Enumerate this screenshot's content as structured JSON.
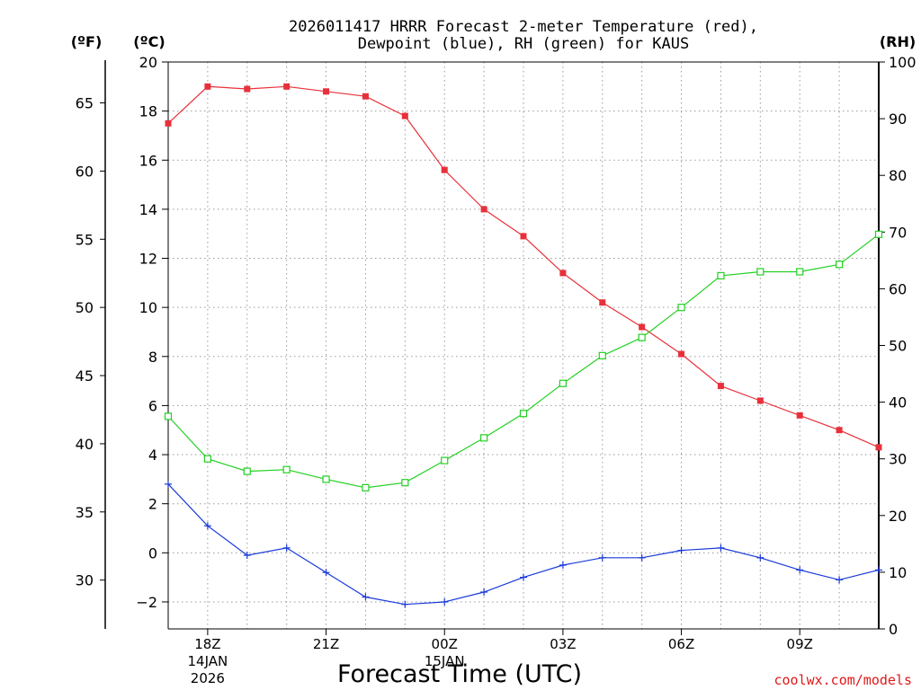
{
  "chart_data": {
    "type": "line",
    "title_line1": "2026011417 HRRR Forecast 2-meter Temperature (red),",
    "title_line2": "Dewpoint (blue), RH (green) for KAUS",
    "units": {
      "f": "(ºF)",
      "c": "(ºC)",
      "rh": "(RH)"
    },
    "xlabel": "Forecast Time (UTC)",
    "credit": "coolwx.com/models",
    "x_hours": [
      17,
      18,
      19,
      20,
      21,
      22,
      23,
      24,
      25,
      26,
      27,
      28,
      29,
      30,
      31,
      32,
      33,
      34,
      35
    ],
    "x_range": [
      17,
      35
    ],
    "x_ticks": [
      {
        "hour": 18,
        "label": "18Z",
        "date": "14JAN",
        "year": "2026"
      },
      {
        "hour": 21,
        "label": "21Z"
      },
      {
        "hour": 24,
        "label": "00Z",
        "date": "15JAN"
      },
      {
        "hour": 27,
        "label": "03Z"
      },
      {
        "hour": 30,
        "label": "06Z"
      },
      {
        "hour": 33,
        "label": "09Z"
      }
    ],
    "c_axis": {
      "range": [
        -3.1,
        20
      ],
      "ticks": [
        -2,
        0,
        2,
        4,
        6,
        8,
        10,
        12,
        14,
        16,
        18,
        20
      ]
    },
    "f_axis": {
      "ticks": [
        30,
        35,
        40,
        45,
        50,
        55,
        60,
        65
      ]
    },
    "rh_axis": {
      "range": [
        0,
        100
      ],
      "ticks": [
        0,
        10,
        20,
        30,
        40,
        50,
        60,
        70,
        80,
        90,
        100
      ]
    },
    "series": [
      {
        "name": "Temperature",
        "axis": "c",
        "color": "#e8303a",
        "marker": "filled-square",
        "values": [
          17.5,
          19.0,
          18.9,
          19.0,
          18.8,
          18.6,
          17.8,
          15.6,
          14.0,
          12.9,
          11.4,
          10.2,
          9.2,
          8.1,
          6.8,
          6.2,
          5.6,
          5.0,
          4.3
        ]
      },
      {
        "name": "Dewpoint",
        "axis": "c",
        "color": "#1a3ad8",
        "marker": "plus",
        "values": [
          2.8,
          1.1,
          -0.1,
          0.2,
          -0.8,
          -1.8,
          -2.1,
          -2.0,
          -1.6,
          -1.0,
          -0.5,
          -0.2,
          -0.2,
          0.1,
          0.2,
          -0.2,
          -0.7,
          -1.1,
          -0.7
        ]
      },
      {
        "name": "RH",
        "axis": "rh",
        "color": "#22d022",
        "marker": "open-square",
        "values": [
          37.5,
          30.0,
          27.8,
          28.1,
          26.4,
          24.9,
          25.8,
          29.7,
          33.7,
          38.0,
          43.3,
          48.2,
          51.4,
          56.7,
          62.3,
          63.0,
          63.0,
          64.3,
          69.6
        ]
      }
    ]
  }
}
